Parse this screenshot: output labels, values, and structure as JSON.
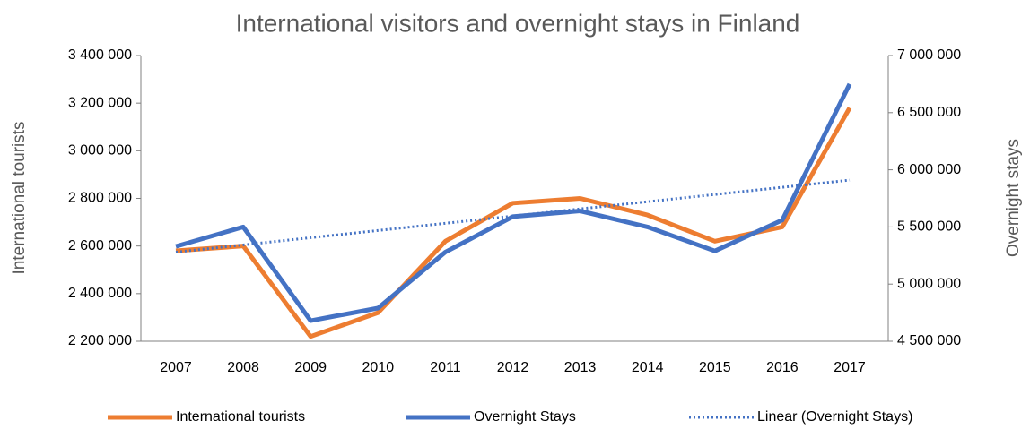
{
  "chart_data": {
    "type": "line",
    "title": "International visitors and overnight stays in Finland",
    "y_label": "International tourists",
    "y2_label": "Overnight stays",
    "categories": [
      "2007",
      "2008",
      "2009",
      "2010",
      "2011",
      "2012",
      "2013",
      "2014",
      "2015",
      "2016",
      "2017"
    ],
    "series": [
      {
        "name": "International tourists",
        "color": "#ed7d31",
        "values": [
          2580000,
          2600000,
          2220000,
          2320000,
          2620000,
          2780000,
          2800000,
          2730000,
          2620000,
          2680000,
          3180000
        ]
      },
      {
        "name": "Overnight Stays",
        "color": "#4472c4",
        "axis": "y2",
        "values": [
          5330000,
          5500000,
          4680000,
          4790000,
          5280000,
          5590000,
          5640000,
          5500000,
          5290000,
          5560000,
          6750000
        ]
      },
      {
        "name": "Linear (Overnight Stays)",
        "color": "#4472c4",
        "axis": "y2",
        "dash": true,
        "values": [
          5280000,
          5343000,
          5406000,
          5469000,
          5532000,
          5595000,
          5658000,
          5721000,
          5784000,
          5847000,
          5910000
        ]
      }
    ],
    "ylim": [
      2200000,
      3400000
    ],
    "yticks": [
      {
        "value": 2200000,
        "label": "2 200 000"
      },
      {
        "value": 2400000,
        "label": "2 400 000"
      },
      {
        "value": 2600000,
        "label": "2 600 000"
      },
      {
        "value": 2800000,
        "label": "2 800 000"
      },
      {
        "value": 3000000,
        "label": "3 000 000"
      },
      {
        "value": 3200000,
        "label": "3 200 000"
      },
      {
        "value": 3400000,
        "label": "3 400 000"
      }
    ],
    "y2lim": [
      4500000,
      7000000
    ],
    "y2ticks": [
      {
        "value": 4500000,
        "label": "4 500 000"
      },
      {
        "value": 5000000,
        "label": "5 000 000"
      },
      {
        "value": 5500000,
        "label": "5 500 000"
      },
      {
        "value": 6000000,
        "label": "6 000 000"
      },
      {
        "value": 6500000,
        "label": "6 500 000"
      },
      {
        "value": 7000000,
        "label": "7 000 000"
      }
    ],
    "legend": "bottom"
  }
}
